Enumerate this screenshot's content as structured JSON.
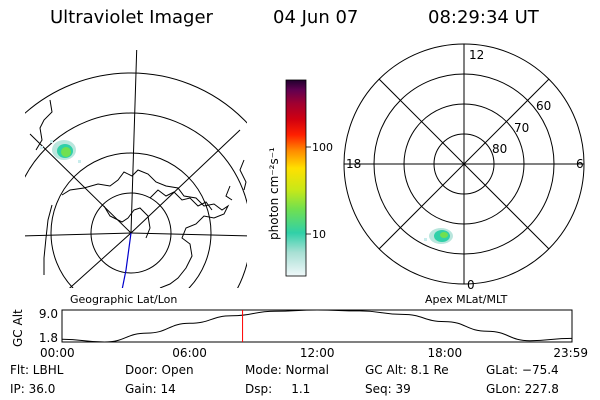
{
  "header": {
    "instrument": "Ultraviolet Imager",
    "date": "04 Jun 07",
    "time": "08:29:34 UT"
  },
  "left_map": {
    "label": "Geographic Lat/Lon"
  },
  "right_polar": {
    "label": "Apex MLat/MLT",
    "lat_labels": [
      "60",
      "70",
      "80"
    ],
    "mlt_labels": {
      "top": "12",
      "left": "18",
      "right": "6",
      "bottom": "0"
    }
  },
  "colorbar": {
    "title": "photon cm⁻²s⁻¹",
    "ticks": [
      "100",
      "10"
    ],
    "scale": "log",
    "colors": [
      "#e8f4f8",
      "#9adccc",
      "#30d0a8",
      "#70e050",
      "#c8e818",
      "#ffe000",
      "#ff8a00",
      "#ff2000",
      "#d00010",
      "#a00030",
      "#600050",
      "#20002e"
    ]
  },
  "chart_data": {
    "type": "line",
    "title": "",
    "ylabel": "GC Alt",
    "ytick_labels": [
      "9.0",
      "1.8"
    ],
    "ylim": [
      1.8,
      9.0
    ],
    "xtick_labels": [
      "00:00",
      "06:00",
      "12:00",
      "18:00",
      "23:59"
    ],
    "x": [
      0,
      2,
      4,
      6,
      8,
      10,
      12,
      14,
      16,
      18,
      20,
      22,
      23.98
    ],
    "y": [
      2.4,
      1.8,
      3.8,
      6.0,
      7.7,
      8.7,
      9.0,
      8.8,
      8.0,
      6.4,
      4.2,
      2.1,
      2.6
    ],
    "marker_x": 8.49,
    "marker_color": "#ff0000"
  },
  "footer": {
    "filter": "Flt: LBHL",
    "ip": "IP: 36.0",
    "door": "Door: Open",
    "gain": "Gain: 14",
    "mode": "Mode: Normal",
    "dsp": "Dsp:     1.1",
    "gc_alt": "GC Alt: 8.1 Re",
    "seq": "Seq: 39",
    "glat": "GLat: −75.4",
    "glon": "GLon: 227.8"
  }
}
